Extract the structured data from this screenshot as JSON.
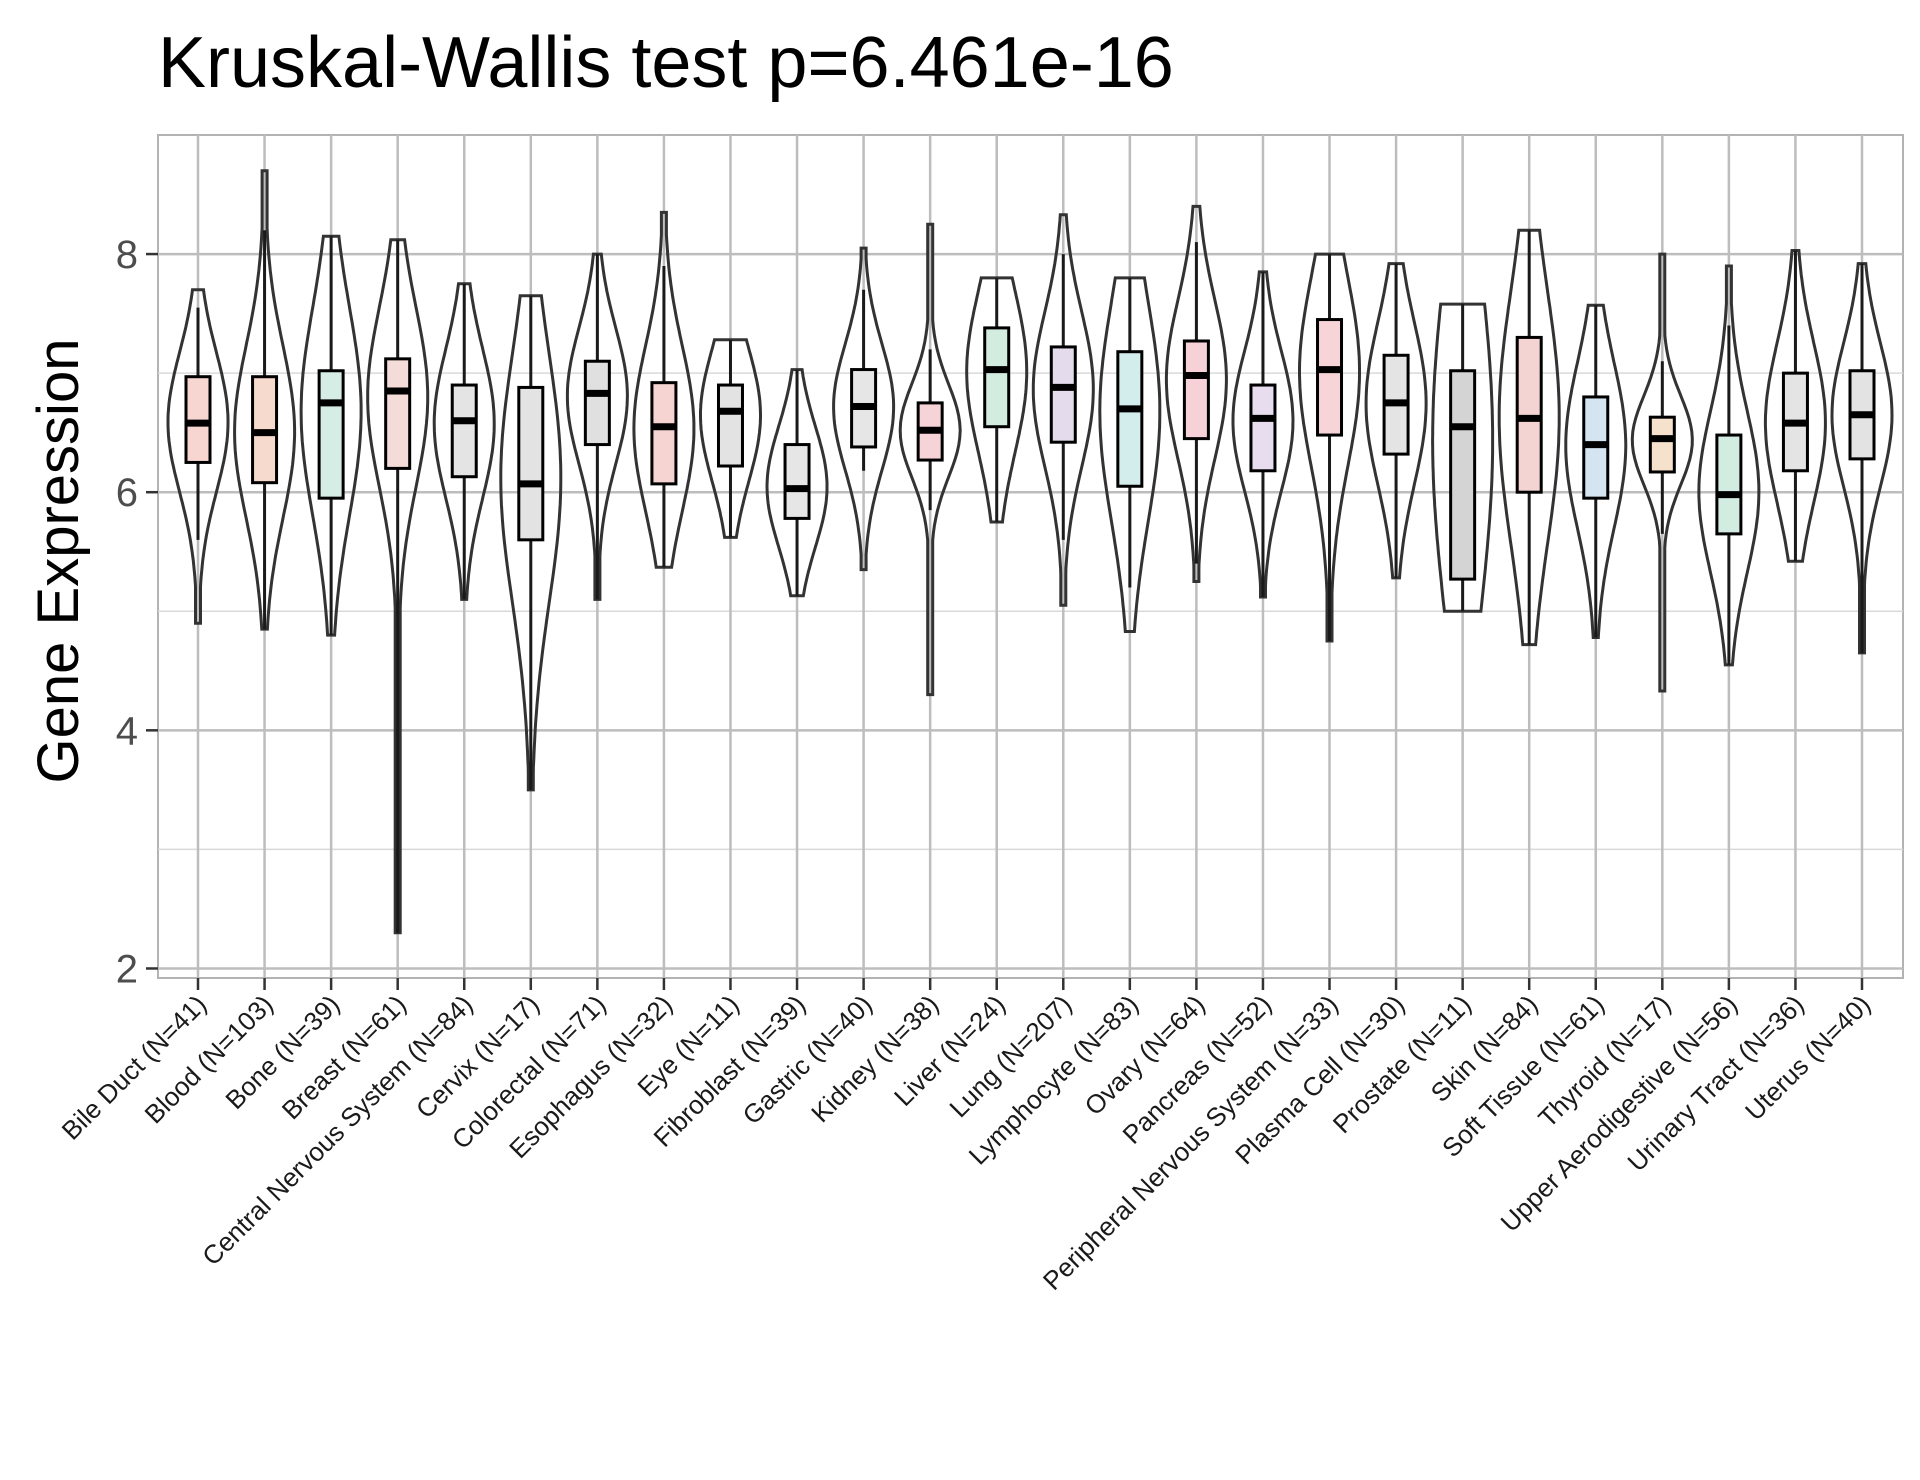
{
  "chart_data": {
    "type": "violin",
    "title": "Kruskal-Wallis test p=6.461e-16",
    "xlabel": "",
    "ylabel": "Gene Expression",
    "ylim": [
      2,
      9
    ],
    "yticks": [
      2,
      4,
      6,
      8
    ],
    "grid": true,
    "categories": [
      "Bile Duct (N=41)",
      "Blood (N=103)",
      "Bone (N=39)",
      "Breast (N=61)",
      "Central Nervous System (N=84)",
      "Cervix (N=17)",
      "Colorectal (N=71)",
      "Esophagus (N=32)",
      "Eye (N=11)",
      "Fibroblast (N=39)",
      "Gastric (N=40)",
      "Kidney (N=38)",
      "Liver (N=24)",
      "Lung (N=207)",
      "Lymphocyte (N=83)",
      "Ovary (N=64)",
      "Pancreas (N=52)",
      "Peripheral Nervous System (N=33)",
      "Plasma Cell (N=30)",
      "Prostate (N=11)",
      "Skin (N=84)",
      "Soft Tissue (N=61)",
      "Thyroid (N=17)",
      "Upper Aerodigestive (N=56)",
      "Urinary Tract (N=36)",
      "Uterus (N=40)"
    ],
    "groups": [
      {
        "min": 4.9,
        "max": 7.7,
        "q1": 6.25,
        "median": 6.58,
        "q3": 6.97,
        "lw": 5.6,
        "uw": 7.55,
        "fill": "#f7d6d2"
      },
      {
        "min": 4.85,
        "max": 8.7,
        "q1": 6.08,
        "median": 6.5,
        "q3": 6.97,
        "lw": 4.85,
        "uw": 8.2,
        "fill": "#f5dacd"
      },
      {
        "min": 4.8,
        "max": 8.15,
        "q1": 5.95,
        "median": 6.75,
        "q3": 7.02,
        "lw": 4.8,
        "uw": 8.15,
        "fill": "#d6ede6"
      },
      {
        "min": 2.3,
        "max": 8.12,
        "q1": 6.2,
        "median": 6.85,
        "q3": 7.12,
        "lw": 2.3,
        "uw": 8.12,
        "fill": "#f4dcd8"
      },
      {
        "min": 5.1,
        "max": 7.75,
        "q1": 6.13,
        "median": 6.6,
        "q3": 6.9,
        "lw": 5.1,
        "uw": 7.75,
        "fill": "#e4e4e4"
      },
      {
        "min": 3.5,
        "max": 7.65,
        "q1": 5.6,
        "median": 6.07,
        "q3": 6.88,
        "lw": 3.5,
        "uw": 7.65,
        "fill": "#e3e3e3"
      },
      {
        "min": 5.1,
        "max": 8.0,
        "q1": 6.4,
        "median": 6.83,
        "q3": 7.1,
        "lw": 5.1,
        "uw": 8.0,
        "fill": "#e0e0e0"
      },
      {
        "min": 5.37,
        "max": 8.35,
        "q1": 6.07,
        "median": 6.55,
        "q3": 6.92,
        "lw": 5.37,
        "uw": 7.9,
        "fill": "#f6d4d2"
      },
      {
        "min": 5.62,
        "max": 7.28,
        "q1": 6.22,
        "median": 6.68,
        "q3": 6.9,
        "lw": 5.62,
        "uw": 7.28,
        "fill": "#e3e3e3"
      },
      {
        "min": 5.13,
        "max": 7.03,
        "q1": 5.78,
        "median": 6.03,
        "q3": 6.4,
        "lw": 5.13,
        "uw": 7.03,
        "fill": "#e6e6e6"
      },
      {
        "min": 5.35,
        "max": 8.05,
        "q1": 6.38,
        "median": 6.72,
        "q3": 7.03,
        "lw": 6.18,
        "uw": 7.7,
        "fill": "#e6e6e6"
      },
      {
        "min": 4.3,
        "max": 8.25,
        "q1": 6.27,
        "median": 6.52,
        "q3": 6.75,
        "lw": 5.85,
        "uw": 7.2,
        "fill": "#f5d3d6"
      },
      {
        "min": 5.75,
        "max": 7.8,
        "q1": 6.55,
        "median": 7.03,
        "q3": 7.38,
        "lw": 5.75,
        "uw": 7.8,
        "fill": "#d3ece0"
      },
      {
        "min": 5.05,
        "max": 8.33,
        "q1": 6.42,
        "median": 6.88,
        "q3": 7.22,
        "lw": 5.6,
        "uw": 8.0,
        "fill": "#e4dcec"
      },
      {
        "min": 4.83,
        "max": 7.8,
        "q1": 6.05,
        "median": 6.7,
        "q3": 7.18,
        "lw": 5.2,
        "uw": 7.8,
        "fill": "#d3ecec"
      },
      {
        "min": 5.25,
        "max": 8.4,
        "q1": 6.45,
        "median": 6.98,
        "q3": 7.27,
        "lw": 5.4,
        "uw": 8.1,
        "fill": "#f6d2d8"
      },
      {
        "min": 5.12,
        "max": 7.85,
        "q1": 6.18,
        "median": 6.62,
        "q3": 6.9,
        "lw": 5.12,
        "uw": 7.85,
        "fill": "#e7ddee"
      },
      {
        "min": 4.75,
        "max": 8.0,
        "q1": 6.48,
        "median": 7.03,
        "q3": 7.45,
        "lw": 4.75,
        "uw": 8.0,
        "fill": "#f7d4d8"
      },
      {
        "min": 5.28,
        "max": 7.92,
        "q1": 6.32,
        "median": 6.75,
        "q3": 7.15,
        "lw": 5.28,
        "uw": 7.92,
        "fill": "#e4e4e4"
      },
      {
        "min": 5.0,
        "max": 7.58,
        "q1": 5.27,
        "median": 6.55,
        "q3": 7.02,
        "lw": 5.0,
        "uw": 7.58,
        "fill": "#d4d4d4"
      },
      {
        "min": 4.72,
        "max": 8.2,
        "q1": 6.0,
        "median": 6.62,
        "q3": 7.3,
        "lw": 4.72,
        "uw": 8.2,
        "fill": "#f4d4d2"
      },
      {
        "min": 4.78,
        "max": 7.57,
        "q1": 5.95,
        "median": 6.4,
        "q3": 6.8,
        "lw": 4.78,
        "uw": 7.57,
        "fill": "#d4e4f0"
      },
      {
        "min": 4.33,
        "max": 8.0,
        "q1": 6.17,
        "median": 6.45,
        "q3": 6.63,
        "lw": 5.65,
        "uw": 7.1,
        "fill": "#f6e2cc"
      },
      {
        "min": 4.55,
        "max": 7.9,
        "q1": 5.65,
        "median": 5.98,
        "q3": 6.48,
        "lw": 4.55,
        "uw": 7.4,
        "fill": "#d3ece2"
      },
      {
        "min": 5.42,
        "max": 8.03,
        "q1": 6.18,
        "median": 6.58,
        "q3": 7.0,
        "lw": 5.42,
        "uw": 8.03,
        "fill": "#e4e4e4"
      },
      {
        "min": 4.65,
        "max": 7.92,
        "q1": 6.28,
        "median": 6.65,
        "q3": 7.02,
        "lw": 4.65,
        "uw": 7.92,
        "fill": "#e3e3e3"
      }
    ]
  }
}
